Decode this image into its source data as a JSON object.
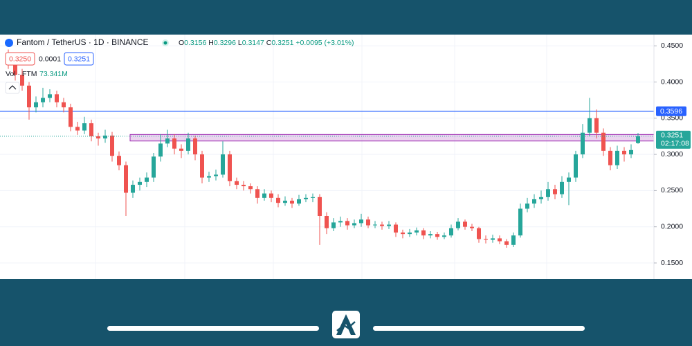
{
  "header": {
    "title": "Fantom / TetherUS · 1D · BINANCE",
    "ohlc": [
      {
        "label": "O",
        "value": "0.3156"
      },
      {
        "label": "H",
        "value": "0.3296"
      },
      {
        "label": "L",
        "value": "0.3147"
      },
      {
        "label": "C",
        "value": "0.3251"
      }
    ],
    "change": "+0.0095 (+3.01%)",
    "sell": "0.3250",
    "spread": "0.0001",
    "buy": "0.3251",
    "volume_label": "Vol · FTM",
    "volume": "73.341M"
  },
  "chart_data": {
    "type": "candlestick",
    "up_color": "#26a69a",
    "down_color": "#ef5350",
    "ylim": [
      0.128,
      0.4655
    ],
    "yticks": [
      {
        "value": 0.45,
        "label": "0.4500"
      },
      {
        "value": 0.4,
        "label": "0.4000"
      },
      {
        "value": 0.35,
        "label": "0.3500"
      },
      {
        "value": 0.3,
        "label": "0.3000"
      },
      {
        "value": 0.25,
        "label": "0.2500"
      },
      {
        "value": 0.2,
        "label": "0.2000"
      },
      {
        "value": 0.15,
        "label": "0.1500"
      }
    ],
    "grid": true,
    "hline": {
      "value": 0.3596,
      "color": "#2962ff"
    },
    "zone": {
      "range": [
        0.3185,
        0.3275
      ],
      "color": "#9c27b0"
    },
    "countdown": "02:17:08",
    "candles": [
      [
        0.43,
        0.445,
        0.418,
        0.425
      ],
      [
        0.425,
        0.432,
        0.402,
        0.41
      ],
      [
        0.41,
        0.418,
        0.388,
        0.395
      ],
      [
        0.395,
        0.4,
        0.348,
        0.365
      ],
      [
        0.365,
        0.38,
        0.358,
        0.372
      ],
      [
        0.372,
        0.392,
        0.365,
        0.378
      ],
      [
        0.378,
        0.39,
        0.372,
        0.383
      ],
      [
        0.383,
        0.388,
        0.365,
        0.372
      ],
      [
        0.372,
        0.378,
        0.358,
        0.365
      ],
      [
        0.365,
        0.37,
        0.332,
        0.338
      ],
      [
        0.338,
        0.345,
        0.327,
        0.333
      ],
      [
        0.333,
        0.352,
        0.328,
        0.343
      ],
      [
        0.343,
        0.348,
        0.318,
        0.325
      ],
      [
        0.325,
        0.33,
        0.312,
        0.322
      ],
      [
        0.322,
        0.334,
        0.316,
        0.326
      ],
      [
        0.326,
        0.331,
        0.29,
        0.298
      ],
      [
        0.298,
        0.304,
        0.278,
        0.285
      ],
      [
        0.285,
        0.29,
        0.215,
        0.247
      ],
      [
        0.247,
        0.264,
        0.24,
        0.258
      ],
      [
        0.258,
        0.268,
        0.25,
        0.262
      ],
      [
        0.262,
        0.275,
        0.255,
        0.268
      ],
      [
        0.268,
        0.302,
        0.262,
        0.297
      ],
      [
        0.297,
        0.328,
        0.29,
        0.315
      ],
      [
        0.315,
        0.334,
        0.31,
        0.322
      ],
      [
        0.322,
        0.328,
        0.3,
        0.308
      ],
      [
        0.308,
        0.314,
        0.295,
        0.305
      ],
      [
        0.305,
        0.33,
        0.3,
        0.322
      ],
      [
        0.322,
        0.326,
        0.292,
        0.3
      ],
      [
        0.3,
        0.305,
        0.26,
        0.268
      ],
      [
        0.268,
        0.276,
        0.262,
        0.27
      ],
      [
        0.27,
        0.279,
        0.264,
        0.272
      ],
      [
        0.272,
        0.318,
        0.268,
        0.3
      ],
      [
        0.3,
        0.305,
        0.256,
        0.263
      ],
      [
        0.263,
        0.268,
        0.252,
        0.258
      ],
      [
        0.258,
        0.263,
        0.25,
        0.256
      ],
      [
        0.256,
        0.26,
        0.246,
        0.252
      ],
      [
        0.252,
        0.256,
        0.232,
        0.24
      ],
      [
        0.24,
        0.252,
        0.236,
        0.246
      ],
      [
        0.246,
        0.25,
        0.234,
        0.24
      ],
      [
        0.24,
        0.245,
        0.227,
        0.233
      ],
      [
        0.233,
        0.242,
        0.229,
        0.236
      ],
      [
        0.236,
        0.24,
        0.226,
        0.232
      ],
      [
        0.232,
        0.244,
        0.229,
        0.238
      ],
      [
        0.238,
        0.245,
        0.234,
        0.24
      ],
      [
        0.24,
        0.246,
        0.234,
        0.241
      ],
      [
        0.241,
        0.245,
        0.175,
        0.215
      ],
      [
        0.215,
        0.22,
        0.19,
        0.198
      ],
      [
        0.198,
        0.212,
        0.194,
        0.206
      ],
      [
        0.206,
        0.214,
        0.2,
        0.208
      ],
      [
        0.208,
        0.212,
        0.196,
        0.202
      ],
      [
        0.202,
        0.21,
        0.198,
        0.205
      ],
      [
        0.205,
        0.218,
        0.2,
        0.21
      ],
      [
        0.21,
        0.214,
        0.198,
        0.202
      ],
      [
        0.202,
        0.208,
        0.198,
        0.203
      ],
      [
        0.203,
        0.207,
        0.196,
        0.201
      ],
      [
        0.201,
        0.208,
        0.197,
        0.203
      ],
      [
        0.203,
        0.206,
        0.186,
        0.192
      ],
      [
        0.192,
        0.196,
        0.184,
        0.19
      ],
      [
        0.19,
        0.197,
        0.186,
        0.192
      ],
      [
        0.192,
        0.199,
        0.188,
        0.195
      ],
      [
        0.195,
        0.198,
        0.183,
        0.188
      ],
      [
        0.188,
        0.194,
        0.184,
        0.19
      ],
      [
        0.19,
        0.193,
        0.182,
        0.186
      ],
      [
        0.186,
        0.192,
        0.183,
        0.188
      ],
      [
        0.188,
        0.203,
        0.185,
        0.198
      ],
      [
        0.198,
        0.212,
        0.195,
        0.207
      ],
      [
        0.207,
        0.21,
        0.196,
        0.2
      ],
      [
        0.2,
        0.204,
        0.194,
        0.198
      ],
      [
        0.198,
        0.2,
        0.178,
        0.183
      ],
      [
        0.183,
        0.188,
        0.177,
        0.182
      ],
      [
        0.182,
        0.189,
        0.178,
        0.184
      ],
      [
        0.184,
        0.188,
        0.176,
        0.18
      ],
      [
        0.18,
        0.183,
        0.171,
        0.175
      ],
      [
        0.175,
        0.192,
        0.172,
        0.188
      ],
      [
        0.188,
        0.232,
        0.185,
        0.225
      ],
      [
        0.225,
        0.24,
        0.22,
        0.232
      ],
      [
        0.232,
        0.245,
        0.226,
        0.238
      ],
      [
        0.238,
        0.25,
        0.232,
        0.241
      ],
      [
        0.241,
        0.262,
        0.236,
        0.252
      ],
      [
        0.252,
        0.258,
        0.238,
        0.245
      ],
      [
        0.245,
        0.27,
        0.24,
        0.262
      ],
      [
        0.262,
        0.275,
        0.23,
        0.268
      ],
      [
        0.268,
        0.305,
        0.262,
        0.3
      ],
      [
        0.3,
        0.342,
        0.295,
        0.33
      ],
      [
        0.33,
        0.378,
        0.325,
        0.35
      ],
      [
        0.35,
        0.362,
        0.322,
        0.33
      ],
      [
        0.33,
        0.336,
        0.298,
        0.305
      ],
      [
        0.305,
        0.31,
        0.278,
        0.285
      ],
      [
        0.285,
        0.312,
        0.28,
        0.305
      ],
      [
        0.305,
        0.31,
        0.29,
        0.3
      ],
      [
        0.3,
        0.314,
        0.295,
        0.306
      ],
      [
        0.3156,
        0.3296,
        0.3147,
        0.3251
      ]
    ]
  }
}
